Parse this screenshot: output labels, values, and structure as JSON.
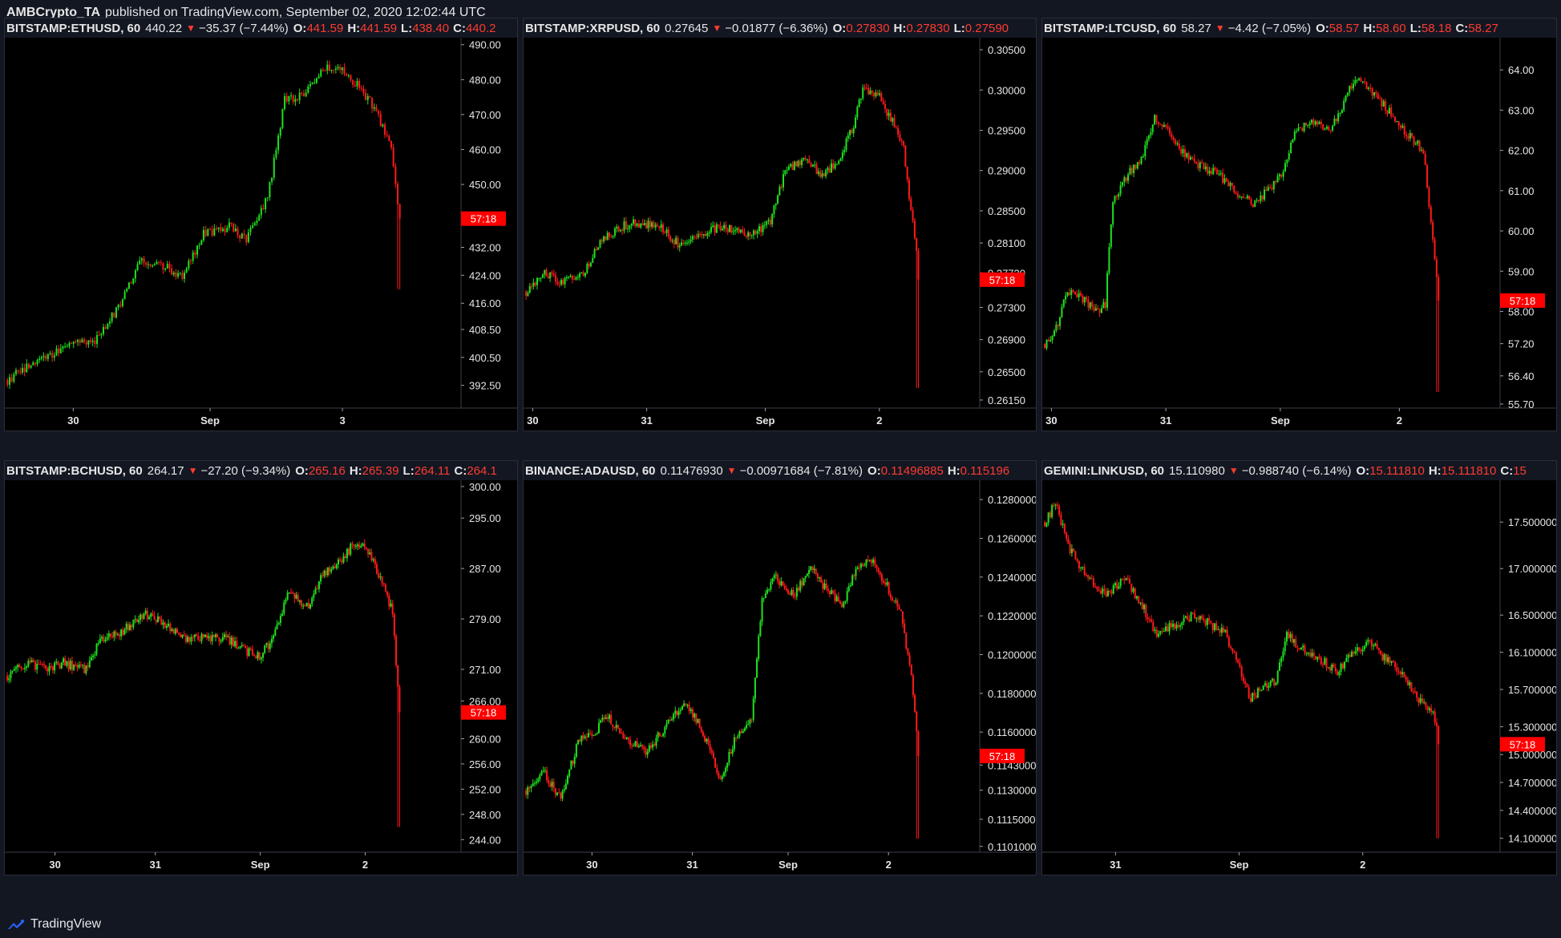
{
  "header": {
    "author": "AMBCrypto_TA",
    "published": "published on TradingView.com, September 02, 2020 12:02:44 UTC"
  },
  "footer": {
    "brand": "TradingView"
  },
  "colors": {
    "up": "#1fe21f",
    "down": "#ff1a1a",
    "tag_bg": "#ff0000",
    "bg": "#000000",
    "frame": "#131722"
  },
  "panels": [
    {
      "symbol": "BITSTAMP:ETHUSD, 60",
      "last": "440.22",
      "change": "−35.37 (−7.44%)",
      "o": "441.59",
      "h": "441.59",
      "l": "438.40",
      "c": "440.2",
      "countdown": "57:18",
      "xlabels": [
        "30",
        "Sep",
        "3"
      ]
    },
    {
      "symbol": "BITSTAMP:XRPUSD, 60",
      "last": "0.27645",
      "change": "−0.01877 (−6.36%)",
      "o": "0.27830",
      "h": "0.27830",
      "l": "0.27590",
      "c": "",
      "countdown": "57:18",
      "xlabels": [
        "30",
        "31",
        "Sep",
        "2"
      ]
    },
    {
      "symbol": "BITSTAMP:LTCUSD, 60",
      "last": "58.27",
      "change": "−4.42 (−7.05%)",
      "o": "58.57",
      "h": "58.60",
      "l": "58.18",
      "c": "58.27",
      "countdown": "57:18",
      "xlabels": [
        "30",
        "31",
        "Sep",
        "2"
      ]
    },
    {
      "symbol": "BITSTAMP:BCHUSD, 60",
      "last": "264.17",
      "change": "−27.20 (−9.34%)",
      "o": "265.16",
      "h": "265.39",
      "l": "264.11",
      "c": "264.1",
      "countdown": "57:18",
      "xlabels": [
        "30",
        "31",
        "Sep",
        "2"
      ]
    },
    {
      "symbol": "BINANCE:ADAUSD, 60",
      "last": "0.11476930",
      "change": "−0.00971684 (−7.81%)",
      "o": "0.11496885",
      "h": "0.115196",
      "l": "",
      "c": "",
      "countdown": "57:18",
      "xlabels": [
        "30",
        "31",
        "Sep",
        "2"
      ]
    },
    {
      "symbol": "GEMINI:LINKUSD, 60",
      "last": "15.110980",
      "change": "−0.988740 (−6.14%)",
      "o": "15.111810",
      "h": "15.111810",
      "l": "",
      "c": "15",
      "countdown": "57:18",
      "xlabels": [
        "31",
        "Sep",
        "2"
      ]
    }
  ],
  "chart_data": [
    {
      "type": "candlestick",
      "symbol": "BITSTAMP:ETHUSD",
      "interval": "60",
      "ylim": [
        386,
        492
      ],
      "yticks": [
        "490.00",
        "480.00",
        "470.00",
        "460.00",
        "450.00",
        "432.00",
        "424.00",
        "416.00",
        "408.50",
        "400.50",
        "392.50"
      ],
      "last_price": 440.22,
      "anchors": [
        [
          0,
          394
        ],
        [
          10,
          398
        ],
        [
          22,
          402
        ],
        [
          32,
          406
        ],
        [
          40,
          404
        ],
        [
          52,
          415
        ],
        [
          62,
          428
        ],
        [
          72,
          427
        ],
        [
          82,
          424
        ],
        [
          92,
          436
        ],
        [
          104,
          438
        ],
        [
          112,
          434
        ],
        [
          122,
          446
        ],
        [
          130,
          474
        ],
        [
          140,
          476
        ],
        [
          150,
          484
        ],
        [
          158,
          482
        ],
        [
          165,
          478
        ],
        [
          172,
          472
        ],
        [
          180,
          460
        ],
        [
          184,
          440
        ]
      ],
      "crash": [
        420,
        440
      ]
    },
    {
      "type": "candlestick",
      "symbol": "BITSTAMP:XRPUSD",
      "interval": "60",
      "ylim": [
        0.2605,
        0.3065
      ],
      "yticks": [
        "0.30500",
        "0.30000",
        "0.29500",
        "0.29000",
        "0.28500",
        "0.28100",
        "0.27730",
        "0.27300",
        "0.26900",
        "0.26500",
        "0.26150"
      ],
      "last_price": 0.27645,
      "anchors": [
        [
          0,
          0.275
        ],
        [
          10,
          0.2775
        ],
        [
          20,
          0.276
        ],
        [
          30,
          0.277
        ],
        [
          40,
          0.281
        ],
        [
          50,
          0.283
        ],
        [
          60,
          0.2835
        ],
        [
          72,
          0.283
        ],
        [
          82,
          0.281
        ],
        [
          92,
          0.282
        ],
        [
          104,
          0.283
        ],
        [
          114,
          0.2825
        ],
        [
          122,
          0.282
        ],
        [
          132,
          0.2835
        ],
        [
          140,
          0.29
        ],
        [
          150,
          0.2915
        ],
        [
          160,
          0.2895
        ],
        [
          168,
          0.291
        ],
        [
          176,
          0.295
        ],
        [
          182,
          0.3
        ],
        [
          190,
          0.2995
        ],
        [
          198,
          0.296
        ],
        [
          204,
          0.293
        ],
        [
          208,
          0.285
        ],
        [
          212,
          0.278
        ]
      ],
      "crash": [
        0.263,
        0.278
      ]
    },
    {
      "type": "candlestick",
      "symbol": "BITSTAMP:LTCUSD",
      "interval": "60",
      "ylim": [
        55.6,
        64.8
      ],
      "yticks": [
        "64.00",
        "63.00",
        "62.00",
        "61.00",
        "60.00",
        "59.00",
        "58.00",
        "57.20",
        "56.40",
        "55.70"
      ],
      "last_price": 58.27,
      "anchors": [
        [
          0,
          57.2
        ],
        [
          6,
          57.6
        ],
        [
          12,
          58.5
        ],
        [
          20,
          58.3
        ],
        [
          28,
          58.0
        ],
        [
          32,
          58.2
        ],
        [
          36,
          60.8
        ],
        [
          44,
          61.4
        ],
        [
          52,
          61.9
        ],
        [
          58,
          62.8
        ],
        [
          66,
          62.4
        ],
        [
          74,
          61.9
        ],
        [
          82,
          61.6
        ],
        [
          92,
          61.4
        ],
        [
          100,
          61.0
        ],
        [
          110,
          60.7
        ],
        [
          118,
          61.0
        ],
        [
          126,
          61.5
        ],
        [
          132,
          62.4
        ],
        [
          140,
          62.7
        ],
        [
          150,
          62.5
        ],
        [
          156,
          63.0
        ],
        [
          164,
          63.8
        ],
        [
          170,
          63.6
        ],
        [
          178,
          63.2
        ],
        [
          186,
          62.7
        ],
        [
          194,
          62.3
        ],
        [
          200,
          62.0
        ],
        [
          204,
          60.2
        ],
        [
          208,
          58.3
        ]
      ],
      "crash": [
        56.0,
        58.5
      ]
    },
    {
      "type": "candlestick",
      "symbol": "BITSTAMP:BCHUSD",
      "interval": "60",
      "ylim": [
        242,
        301
      ],
      "yticks": [
        "300.00",
        "295.00",
        "287.00",
        "279.00",
        "271.00",
        "266.00",
        "260.00",
        "256.00",
        "252.00",
        "248.00",
        "244.00"
      ],
      "last_price": 264.17,
      "anchors": [
        [
          0,
          270
        ],
        [
          12,
          272
        ],
        [
          22,
          271
        ],
        [
          32,
          272
        ],
        [
          44,
          271
        ],
        [
          54,
          276
        ],
        [
          66,
          277
        ],
        [
          78,
          280
        ],
        [
          90,
          278
        ],
        [
          100,
          276
        ],
        [
          112,
          276
        ],
        [
          124,
          276
        ],
        [
          136,
          274
        ],
        [
          144,
          273
        ],
        [
          152,
          276
        ],
        [
          160,
          283
        ],
        [
          172,
          281
        ],
        [
          180,
          286
        ],
        [
          190,
          288
        ],
        [
          198,
          291
        ],
        [
          206,
          290
        ],
        [
          214,
          285
        ],
        [
          220,
          280
        ],
        [
          224,
          264
        ]
      ],
      "crash": [
        246,
        266
      ]
    },
    {
      "type": "candlestick",
      "symbol": "BINANCE:ADAUSD",
      "interval": "60",
      "ylim": [
        0.1098,
        0.129
      ],
      "yticks": [
        "0.12800000",
        "0.12600000",
        "0.12400000",
        "0.12200000",
        "0.12000000",
        "0.11800000",
        "0.11600000",
        "0.11430000",
        "0.11300000",
        "0.11150000",
        "0.11010000"
      ],
      "last_price": 0.1147693,
      "anchors": [
        [
          0,
          0.113
        ],
        [
          10,
          0.114
        ],
        [
          20,
          0.1125
        ],
        [
          30,
          0.1155
        ],
        [
          40,
          0.116
        ],
        [
          46,
          0.117
        ],
        [
          52,
          0.1162
        ],
        [
          60,
          0.1155
        ],
        [
          70,
          0.115
        ],
        [
          82,
          0.1165
        ],
        [
          92,
          0.1175
        ],
        [
          102,
          0.116
        ],
        [
          112,
          0.1135
        ],
        [
          122,
          0.116
        ],
        [
          130,
          0.1165
        ],
        [
          136,
          0.123
        ],
        [
          144,
          0.124
        ],
        [
          154,
          0.123
        ],
        [
          164,
          0.1245
        ],
        [
          172,
          0.1235
        ],
        [
          182,
          0.1225
        ],
        [
          190,
          0.1245
        ],
        [
          198,
          0.125
        ],
        [
          208,
          0.1235
        ],
        [
          216,
          0.122
        ],
        [
          222,
          0.119
        ],
        [
          226,
          0.115
        ]
      ],
      "crash": [
        0.1105,
        0.115
      ]
    },
    {
      "type": "candlestick",
      "symbol": "GEMINI:LINKUSD",
      "interval": "60",
      "ylim": [
        13.95,
        17.95
      ],
      "yticks": [
        "17.500000",
        "17.000000",
        "16.500000",
        "16.100000",
        "15.700000",
        "15.300000",
        "15.000000",
        "14.700000",
        "14.400000",
        "14.100000"
      ],
      "last_price": 15.11098,
      "anchors": [
        [
          0,
          17.5
        ],
        [
          6,
          17.7
        ],
        [
          14,
          17.2
        ],
        [
          24,
          16.9
        ],
        [
          34,
          16.7
        ],
        [
          44,
          16.9
        ],
        [
          54,
          16.6
        ],
        [
          62,
          16.3
        ],
        [
          72,
          16.4
        ],
        [
          82,
          16.5
        ],
        [
          92,
          16.4
        ],
        [
          100,
          16.3
        ],
        [
          106,
          16.0
        ],
        [
          114,
          15.6
        ],
        [
          120,
          15.7
        ],
        [
          128,
          15.8
        ],
        [
          134,
          16.3
        ],
        [
          144,
          16.1
        ],
        [
          154,
          16.0
        ],
        [
          162,
          15.9
        ],
        [
          170,
          16.1
        ],
        [
          180,
          16.2
        ],
        [
          190,
          16.0
        ],
        [
          198,
          15.9
        ],
        [
          206,
          15.6
        ],
        [
          214,
          15.5
        ],
        [
          218,
          15.2
        ]
      ],
      "crash": [
        14.1,
        15.2
      ]
    }
  ]
}
